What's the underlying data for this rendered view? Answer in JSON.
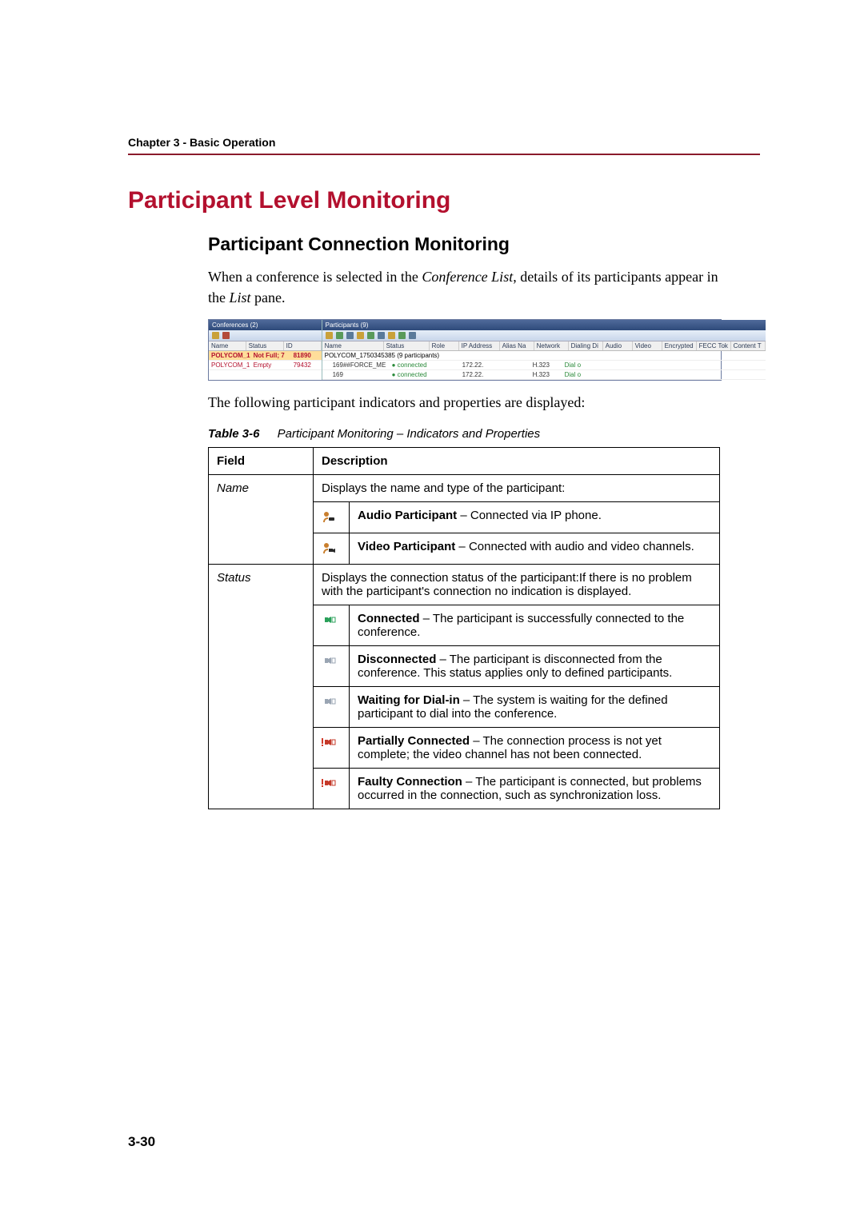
{
  "chapter_header": "Chapter 3 - Basic Operation",
  "h1": "Participant Level Monitoring",
  "h2": "Participant Connection Monitoring",
  "intro_1a": "When a conference is selected in the ",
  "intro_1b": "Conference List",
  "intro_1c": ", details of its participants appear in the ",
  "intro_1d": "List",
  "intro_1e": " pane.",
  "intro_2": "The following participant indicators and properties are displayed:",
  "table_caption_label": "Table 3-6",
  "table_caption_text": "Participant Monitoring – Indicators and Properties",
  "table_header_field": "Field",
  "table_header_desc": "Description",
  "row_name_field": "Name",
  "row_name_intro": "Displays the name and type of the participant:",
  "row_name_icon1_desc_bold": "Audio Participant",
  "row_name_icon1_desc_rest": " – Connected via IP phone.",
  "row_name_icon2_desc_bold": "Video Participant",
  "row_name_icon2_desc_rest": " – Connected with audio and video channels.",
  "row_status_field": "Status",
  "row_status_intro": "Displays the connection status of the participant:If there is no problem with the participant's connection no indication is displayed.",
  "status_items": [
    {
      "bold": "Connected",
      "rest": " – The participant is successfully connected to the conference.",
      "icon_color": "#2aa05a"
    },
    {
      "bold": "Disconnected",
      "rest": " – The participant is disconnected from the conference. This status applies only to defined participants.",
      "icon_color": "#9aa5b3"
    },
    {
      "bold": "Waiting for Dial-in",
      "rest": " – The system is waiting for the defined participant to dial into the conference.",
      "icon_color": "#9aa5b3"
    },
    {
      "bold": "Partially Connected",
      "rest": " – The connection process is not yet complete; the video channel has not been connected.",
      "icon_color": "#c43a2a"
    },
    {
      "bold": "Faulty Connection",
      "rest": " – The participant is connected, but problems occurred in the connection, such as synchronization loss.",
      "icon_color": "#c43a2a"
    }
  ],
  "page_number": "3-30",
  "mini": {
    "left_title": "Conferences (2)",
    "right_title": "Participants (9)",
    "left_cols": [
      "Name",
      "Status",
      "ID"
    ],
    "right_cols": [
      "Name",
      "Status",
      "Role",
      "IP Address",
      "Alias Na",
      "Network",
      "Dialing Di",
      "Audio",
      "Video",
      "Encrypted",
      "FECC Tok",
      "Content T"
    ],
    "left_rows": [
      {
        "name": "POLYCOM_1",
        "status": "Not Full; 7",
        "id": "81890",
        "selected": true
      },
      {
        "name": "POLYCOM_1",
        "status": "Empty",
        "id": "79432",
        "selected": false
      }
    ],
    "right_group": "POLYCOM_1750345385 (9 participants)",
    "right_rows": [
      {
        "name": "169##FORCE_ME",
        "status": "connected",
        "ip": "172.22.",
        "net": "H.323",
        "dial": "Dial o"
      },
      {
        "name": "169",
        "status": "connected",
        "ip": "172.22.",
        "net": "H.323",
        "dial": "Dial o"
      }
    ]
  },
  "icon_colors": {
    "audio_participant_head": "#c97f2e",
    "audio_participant_phone": "#2a2a2a",
    "video_participant_head": "#c97f2e",
    "video_participant_cam": "#2a2a2a"
  }
}
